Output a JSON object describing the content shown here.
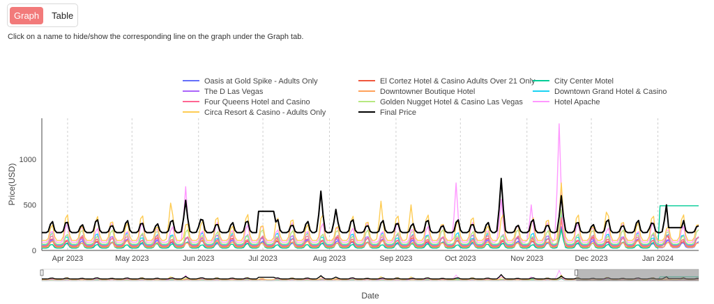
{
  "tabs": [
    {
      "label": "Graph",
      "active": true
    },
    {
      "label": "Table",
      "active": false
    }
  ],
  "hint": "Click on a name to hide/show the corresponding line on the graph under the Graph tab.",
  "chart_data": {
    "type": "line",
    "xlabel": "Date",
    "ylabel": "Price(USD)",
    "x_range": [
      "2023-03-20",
      "2024-01-20"
    ],
    "ylim": [
      0,
      1450
    ],
    "y_ticks": [
      0,
      500,
      1000
    ],
    "x_ticks": [
      {
        "date": "2023-04-01",
        "label": "Apr 2023"
      },
      {
        "date": "2023-05-01",
        "label": "May 2023"
      },
      {
        "date": "2023-06-01",
        "label": "Jun 2023"
      },
      {
        "date": "2023-07-01",
        "label": "Jul 2023"
      },
      {
        "date": "2023-08-01",
        "label": "Aug 2023"
      },
      {
        "date": "2023-09-01",
        "label": "Sep 2023"
      },
      {
        "date": "2023-10-01",
        "label": "Oct 2023"
      },
      {
        "date": "2023-11-01",
        "label": "Nov 2023"
      },
      {
        "date": "2023-12-01",
        "label": "Dec 2023"
      },
      {
        "date": "2024-01-01",
        "label": "Jan 2024"
      }
    ],
    "grid": "vertical dotted",
    "legend_position": "top",
    "series": [
      {
        "name": "Oasis at Gold Spike - Adults Only",
        "color": "#636efa",
        "base": 30,
        "peak": 110,
        "specials": [
          [
            "2023-11-17",
            260
          ]
        ]
      },
      {
        "name": "El Cortez Hotel & Casino Adults Over 21 Only",
        "color": "#ef553b",
        "base": 45,
        "peak": 140,
        "specials": [
          [
            "2023-11-17",
            420
          ],
          [
            "2024-01-05",
            170
          ]
        ]
      },
      {
        "name": "City Center Motel",
        "color": "#00cc96",
        "base": 25,
        "peak": 90,
        "specials": [
          [
            "2023-11-17",
            230
          ]
        ],
        "step_after": {
          "date": "2024-01-02",
          "value": 490
        }
      },
      {
        "name": "The D Las Vegas",
        "color": "#ab63fa",
        "base": 55,
        "peak": 170,
        "specials": [
          [
            "2023-11-17",
            380
          ]
        ]
      },
      {
        "name": "Downtowner Boutique Hotel",
        "color": "#ffa15a",
        "base": 35,
        "peak": 120,
        "specials": [
          [
            "2023-11-17",
            330
          ]
        ]
      },
      {
        "name": "Downtown Grand Hotel & Casino",
        "color": "#19d3f3",
        "base": 60,
        "peak": 190,
        "specials": [
          [
            "2023-11-17",
            420
          ]
        ]
      },
      {
        "name": "Four Queens Hotel and Casino",
        "color": "#ff6692",
        "base": 50,
        "peak": 160,
        "specials": [
          [
            "2023-11-17",
            360
          ]
        ]
      },
      {
        "name": "Golden Nugget Hotel & Casino Las Vegas",
        "color": "#b6e880",
        "base": 70,
        "peak": 220,
        "specials": [
          [
            "2023-11-17",
            450
          ]
        ]
      },
      {
        "name": "Hotel Apache",
        "color": "#ff97ff",
        "base": 90,
        "peak": 300,
        "specials": [
          [
            "2023-05-26",
            700
          ],
          [
            "2023-09-29",
            740
          ],
          [
            "2023-11-03",
            500
          ],
          [
            "2023-11-16",
            1390
          ],
          [
            "2023-10-20",
            560
          ]
        ]
      },
      {
        "name": "Circa Resort & Casino - Adults Only",
        "color": "#fecb52",
        "base": 110,
        "peak": 380,
        "specials": [
          [
            "2023-05-19",
            520
          ],
          [
            "2023-08-25",
            540
          ],
          [
            "2023-09-08",
            500
          ],
          [
            "2023-11-17",
            740
          ],
          [
            "2023-12-08",
            420
          ]
        ]
      },
      {
        "name": "Final Price",
        "color": "#000000",
        "base": 195,
        "peak": 330,
        "width": 2,
        "specials": [
          [
            "2023-05-26",
            550
          ],
          [
            "2023-06-02",
            340
          ],
          [
            "2023-07-28",
            650
          ],
          [
            "2023-08-04",
            450
          ],
          [
            "2023-10-20",
            790
          ],
          [
            "2023-11-17",
            600
          ],
          [
            "2024-01-05",
            500
          ],
          [
            "2023-12-29",
            300
          ]
        ],
        "plateaus": [
          [
            "2023-06-29",
            "2023-07-06",
            430
          ],
          [
            "2024-01-06",
            "2024-01-12",
            250
          ]
        ]
      }
    ]
  }
}
